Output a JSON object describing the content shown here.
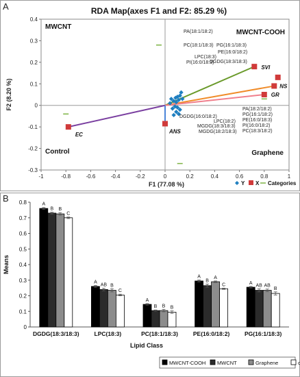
{
  "panelA": {
    "letter": "A",
    "chart_data": {
      "type": "scatter",
      "title": "RDA Map(axes F1 and F2: 85.29 %)",
      "xlabel": "F1 (77.08 %)",
      "ylabel": "F2 (8.20 %)",
      "xlim": [
        -1,
        1
      ],
      "ylim": [
        -0.3,
        0.4
      ],
      "xticks": [
        "-1",
        "-0.8",
        "-0.6",
        "-0.4",
        "-0.2",
        "0",
        "0.2",
        "0.4",
        "0.6",
        "0.8",
        "1"
      ],
      "yticks": [
        "-0.3",
        "-0.2",
        "-0.1",
        "0",
        "0.1",
        "0.2",
        "0.3",
        "0.4"
      ],
      "quadrant_labels": {
        "top_left": "MWCNT",
        "top_right": "MWCNT-COOH",
        "bottom_left": "Control",
        "bottom_right": "Graphene"
      },
      "legend": {
        "position": "bottom-right",
        "entries": [
          "Y",
          "X",
          "Categories"
        ]
      },
      "colors": {
        "Y": "#1f7fc0",
        "X": "#d03a3a",
        "Categories": "#7cb342",
        "SVI": "#6a9a2a",
        "NS": "#f08c2a",
        "GR": "#f07f8c",
        "EC": "#7a3fa0",
        "ANS": "#4a84d8"
      },
      "vectors": [
        {
          "label": "SVI",
          "x": 0.72,
          "y": 0.18,
          "color": "#6a9a2a"
        },
        {
          "label": "NS",
          "x": 0.88,
          "y": 0.09,
          "color": "#f08c2a"
        },
        {
          "label": "GR",
          "x": 0.8,
          "y": 0.05,
          "color": "#f07f8c"
        },
        {
          "label": "EC",
          "x": -0.78,
          "y": -0.1,
          "color": "#7a3fa0"
        },
        {
          "label": "ANS",
          "x": 0.0,
          "y": -0.085,
          "color": "#4a84d8"
        }
      ],
      "extra_x_markers": [
        {
          "x": 0.91,
          "y": 0.13
        }
      ],
      "y_points": [
        {
          "x": 0.13,
          "y": 0.06
        },
        {
          "x": 0.12,
          "y": 0.045
        },
        {
          "x": 0.1,
          "y": 0.04
        },
        {
          "x": 0.085,
          "y": 0.035
        },
        {
          "x": 0.14,
          "y": 0.03
        },
        {
          "x": 0.11,
          "y": 0.025
        },
        {
          "x": 0.05,
          "y": 0.03
        },
        {
          "x": 0.07,
          "y": 0.02
        },
        {
          "x": 0.09,
          "y": 0.015
        },
        {
          "x": 0.04,
          "y": 0.01
        },
        {
          "x": 0.08,
          "y": -0.005
        },
        {
          "x": 0.1,
          "y": -0.01
        },
        {
          "x": 0.06,
          "y": -0.015
        },
        {
          "x": 0.12,
          "y": -0.02
        },
        {
          "x": 0.09,
          "y": -0.03
        },
        {
          "x": 0.11,
          "y": -0.04
        },
        {
          "x": 0.07,
          "y": -0.045
        }
      ],
      "category_points": [
        {
          "x": -0.05,
          "y": 0.28
        },
        {
          "x": -0.8,
          "y": -0.04
        },
        {
          "x": 0.12,
          "y": -0.27
        },
        {
          "x": 0.8,
          "y": 0.03
        }
      ],
      "annotations_top": [
        "PA(18:1/18:2)",
        "PC(18:1/18:3)",
        "PG(16:1/18:3)",
        "PE(16:0/18:2)",
        "LPC(18:3)",
        "PI(16:0/18:3)",
        "DGDG(18:3/18:3)"
      ],
      "annotations_mid": [
        "DGDG(16:0/18:2)",
        "LPC(18:2)",
        "MGDG(18:3/18:3)",
        "MGDG(18:2/18:3)"
      ],
      "annotations_right": [
        "PA(18:2/18:2)",
        "PG(16:1/18:2)",
        "PE(16:0/18:3)",
        "PI(16:0/18:2)",
        "PC(18:3/18:2)"
      ]
    }
  },
  "panelB": {
    "letter": "B",
    "chart_data": {
      "type": "bar",
      "title": "",
      "xlabel": "Lipid Class",
      "ylabel": "Means",
      "ylim": [
        0,
        0.8
      ],
      "yticks": [
        "0",
        "0.1",
        "0.2",
        "0.3",
        "0.4",
        "0.5",
        "0.6",
        "0.7",
        "0.8"
      ],
      "categories": [
        "DGDG(18:3/18:3)",
        "LPC(18:3)",
        "PC(18:1/18:3)",
        "PE(16:0/18:2)",
        "PG(16:1/18:3)"
      ],
      "series": [
        {
          "name": "MWCNT-COOH",
          "color": "#000000",
          "values": [
            0.76,
            0.26,
            0.145,
            0.295,
            0.255
          ],
          "errors": [
            0.006,
            0.006,
            0.005,
            0.006,
            0.005
          ],
          "letters": [
            "A",
            "A",
            "A",
            "A",
            "A"
          ]
        },
        {
          "name": "MWCNT",
          "color": "#2b2b2b",
          "values": [
            0.73,
            0.24,
            0.105,
            0.265,
            0.235
          ],
          "errors": [
            0.006,
            0.008,
            0.004,
            0.01,
            0.01
          ],
          "letters": [
            "B",
            "AB",
            "B",
            "B",
            "AB"
          ]
        },
        {
          "name": "Graphene",
          "color": "#8c8c8c",
          "values": [
            0.725,
            0.235,
            0.105,
            0.29,
            0.235
          ],
          "errors": [
            0.008,
            0.01,
            0.008,
            0.005,
            0.008
          ],
          "letters": [
            "B",
            "B",
            "B",
            "A",
            "AB"
          ]
        },
        {
          "name": "control",
          "color": "#ffffff",
          "values": [
            0.7,
            0.205,
            0.095,
            0.245,
            0.215
          ],
          "errors": [
            0.005,
            0.005,
            0.008,
            0.004,
            0.01
          ],
          "letters": [
            "C",
            "C",
            "B",
            "C",
            "B"
          ]
        }
      ],
      "legend": {
        "position": "bottom"
      }
    }
  }
}
